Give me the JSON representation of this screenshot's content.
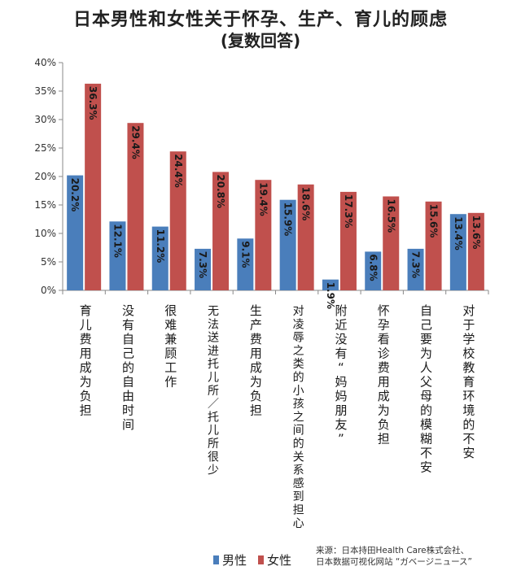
{
  "chart_data": {
    "type": "bar",
    "title": "日本男性和女性关于怀孕、生产、育儿的顾虑",
    "subtitle": "(复数回答)",
    "categories": [
      "育儿费用成为负担",
      "没有自己的自由时间",
      "很难兼顾工作",
      "无法送进托儿所／托儿所很少",
      "生产费用成为负担",
      "对凌辱之类的小孩之间的关系感到担心",
      "附近没有“妈妈朋友”",
      "怀孕看诊费用成为负担",
      "自己要为人父母的模糊不安",
      "对于学校教育环境的不安"
    ],
    "series": [
      {
        "name": "男性",
        "color": "#4a7ebb",
        "values": [
          20.2,
          12.1,
          11.2,
          7.3,
          9.1,
          15.9,
          1.9,
          6.8,
          7.3,
          13.4
        ],
        "labels": [
          "20.2%",
          "12.1%",
          "11.2%",
          "7.3%",
          "9.1%",
          "15.9%",
          "1.9%",
          "6.8%",
          "7.3%",
          "13.4%"
        ]
      },
      {
        "name": "女性",
        "color": "#c0504d",
        "values": [
          36.3,
          29.4,
          24.4,
          20.8,
          19.4,
          18.6,
          17.3,
          16.5,
          15.6,
          13.6
        ],
        "labels": [
          "36.3%",
          "29.4%",
          "24.4%",
          "20.8%",
          "19.4%",
          "18.6%",
          "17.3%",
          "16.5%",
          "15.6%",
          "13.6%"
        ]
      }
    ],
    "yticks": [
      "0%",
      "5%",
      "10%",
      "15%",
      "20%",
      "25%",
      "30%",
      "35%",
      "40%"
    ],
    "ylim": [
      0,
      40
    ],
    "grid": false,
    "legend": "bottom"
  },
  "source": {
    "line1": "来源：日本持田Health Care株式会社、",
    "line2": "日本数据可视化网站 “ガベージニュース”"
  }
}
